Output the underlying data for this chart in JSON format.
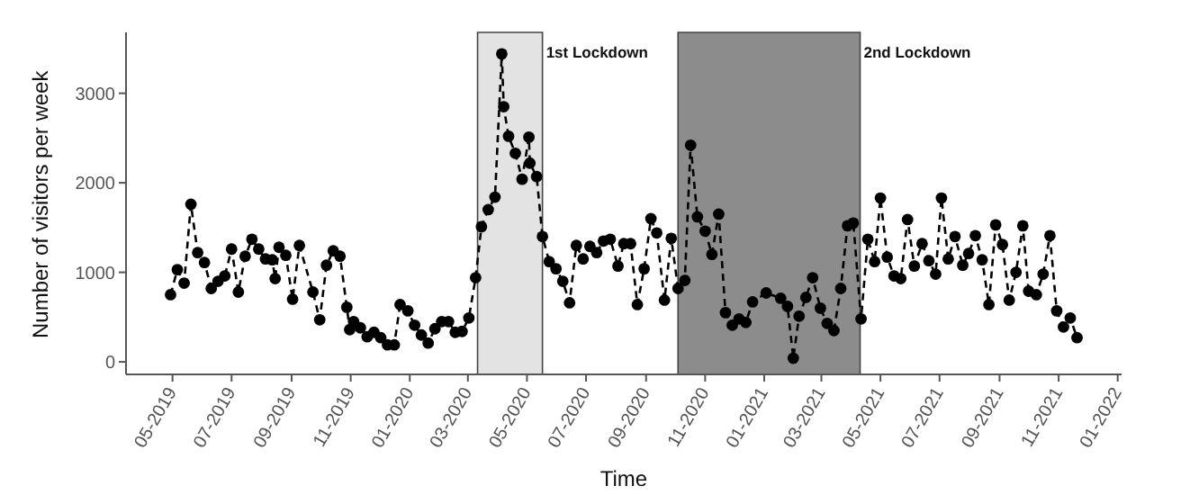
{
  "chart_data": {
    "type": "line",
    "xlabel": "Time",
    "ylabel": "Number of visitors per week",
    "x": [
      "2019-04-29",
      "2019-05-06",
      "2019-05-13",
      "2019-05-20",
      "2019-05-27",
      "2019-06-03",
      "2019-06-10",
      "2019-06-17",
      "2019-06-24",
      "2019-07-01",
      "2019-07-08",
      "2019-07-15",
      "2019-07-22",
      "2019-07-29",
      "2019-08-05",
      "2019-08-12",
      "2019-08-15",
      "2019-08-19",
      "2019-08-26",
      "2019-09-02",
      "2019-09-09",
      "2019-09-23",
      "2019-09-30",
      "2019-10-07",
      "2019-10-14",
      "2019-10-21",
      "2019-10-28",
      "2019-10-31",
      "2019-11-04",
      "2019-11-11",
      "2019-11-18",
      "2019-11-25",
      "2019-12-02",
      "2019-12-09",
      "2019-12-16",
      "2019-12-22",
      "2019-12-30",
      "2020-01-06",
      "2020-01-13",
      "2020-01-20",
      "2020-01-27",
      "2020-02-03",
      "2020-02-10",
      "2020-02-17",
      "2020-02-24",
      "2020-03-02",
      "2020-03-09",
      "2020-03-15",
      "2020-03-22",
      "2020-03-29",
      "2020-04-05",
      "2020-04-07",
      "2020-04-12",
      "2020-04-19",
      "2020-04-26",
      "2020-05-03",
      "2020-05-04",
      "2020-05-11",
      "2020-05-17",
      "2020-05-24",
      "2020-05-31",
      "2020-06-07",
      "2020-06-14",
      "2020-06-21",
      "2020-06-28",
      "2020-07-05",
      "2020-07-12",
      "2020-07-19",
      "2020-07-26",
      "2020-08-03",
      "2020-08-09",
      "2020-08-16",
      "2020-08-23",
      "2020-08-30",
      "2020-09-06",
      "2020-09-12",
      "2020-09-20",
      "2020-09-27",
      "2020-10-04",
      "2020-10-11",
      "2020-10-17",
      "2020-10-24",
      "2020-11-01",
      "2020-11-08",
      "2020-11-15",
      "2020-11-22",
      "2020-11-29",
      "2020-12-06",
      "2020-12-13",
      "2020-12-20",
      "2021-01-03",
      "2021-01-18",
      "2021-01-25",
      "2021-01-31",
      "2021-02-06",
      "2021-02-13",
      "2021-02-20",
      "2021-02-28",
      "2021-03-07",
      "2021-03-14",
      "2021-03-21",
      "2021-03-28",
      "2021-04-03",
      "2021-04-11",
      "2021-04-18",
      "2021-04-25",
      "2021-05-01",
      "2021-05-08",
      "2021-05-15",
      "2021-05-22",
      "2021-05-29",
      "2021-06-05",
      "2021-06-13",
      "2021-06-20",
      "2021-06-27",
      "2021-07-03",
      "2021-07-10",
      "2021-07-17",
      "2021-07-25",
      "2021-07-31",
      "2021-08-07",
      "2021-08-14",
      "2021-08-21",
      "2021-08-28",
      "2021-09-04",
      "2021-09-11",
      "2021-09-18",
      "2021-09-25",
      "2021-10-01",
      "2021-10-09",
      "2021-10-16",
      "2021-10-23",
      "2021-10-30",
      "2021-11-06",
      "2021-11-13",
      "2021-11-20"
    ],
    "series": [
      {
        "color": "#000000",
        "values": [
          750,
          1030,
          880,
          1760,
          1220,
          1110,
          820,
          900,
          960,
          1260,
          780,
          1180,
          1370,
          1260,
          1150,
          1140,
          930,
          1280,
          1190,
          700,
          1300,
          780,
          470,
          1080,
          1240,
          1180,
          610,
          360,
          450,
          380,
          280,
          330,
          270,
          190,
          190,
          640,
          570,
          410,
          300,
          210,
          370,
          450,
          450,
          330,
          340,
          490,
          940,
          1510,
          1700,
          1840,
          3440,
          2850,
          2520,
          2330,
          2040,
          2510,
          2220,
          2070,
          1400,
          1120,
          1040,
          900,
          660,
          1300,
          1150,
          1290,
          1220,
          1350,
          1370,
          1070,
          1320,
          1320,
          640,
          1040,
          1600,
          1440,
          690,
          1380,
          820,
          910,
          2420,
          1620,
          1460,
          1200,
          1650,
          550,
          410,
          480,
          440,
          670,
          770,
          710,
          620,
          40,
          510,
          720,
          940,
          600,
          430,
          350,
          820,
          1520,
          1550,
          480,
          1370,
          1120,
          1830,
          1170,
          960,
          930,
          1590,
          1070,
          1320,
          1130,
          980,
          1830,
          1150,
          1400,
          1080,
          1210,
          1410,
          1140,
          640,
          1530,
          1310,
          690,
          1000,
          1520,
          790,
          750,
          980,
          1410,
          570,
          390,
          490,
          270
        ]
      }
    ],
    "xlim": [
      "2019-03-14",
      "2022-01-05"
    ],
    "xticks": [
      {
        "value": "2019-05-01",
        "label": "05-2019"
      },
      {
        "value": "2019-07-01",
        "label": "07-2019"
      },
      {
        "value": "2019-09-01",
        "label": "09-2019"
      },
      {
        "value": "2019-11-01",
        "label": "11-2019"
      },
      {
        "value": "2020-01-01",
        "label": "01-2020"
      },
      {
        "value": "2020-03-01",
        "label": "03-2020"
      },
      {
        "value": "2020-05-01",
        "label": "05-2020"
      },
      {
        "value": "2020-07-01",
        "label": "07-2020"
      },
      {
        "value": "2020-09-01",
        "label": "09-2020"
      },
      {
        "value": "2020-11-01",
        "label": "11-2020"
      },
      {
        "value": "2021-01-01",
        "label": "01-2021"
      },
      {
        "value": "2021-03-01",
        "label": "03-2021"
      },
      {
        "value": "2021-05-01",
        "label": "05-2021"
      },
      {
        "value": "2021-07-01",
        "label": "07-2021"
      },
      {
        "value": "2021-09-01",
        "label": "09-2021"
      },
      {
        "value": "2021-11-01",
        "label": "11-2021"
      },
      {
        "value": "2022-01-01",
        "label": "01-2022"
      }
    ],
    "ylim": [
      -140,
      3680
    ],
    "yticks": [
      0,
      1000,
      2000,
      3000
    ],
    "bands": [
      {
        "axis": "x",
        "from": "2020-03-11",
        "to": "2020-05-17",
        "label": "1st Lockdown",
        "color": "#e3e3e3"
      },
      {
        "axis": "x",
        "from": "2020-10-04",
        "to": "2021-04-10",
        "label": "2nd Lockdown",
        "color": "#8c8c8c"
      }
    ],
    "marker": "circle",
    "line_style": "dashed",
    "grid": false,
    "legend": false
  }
}
